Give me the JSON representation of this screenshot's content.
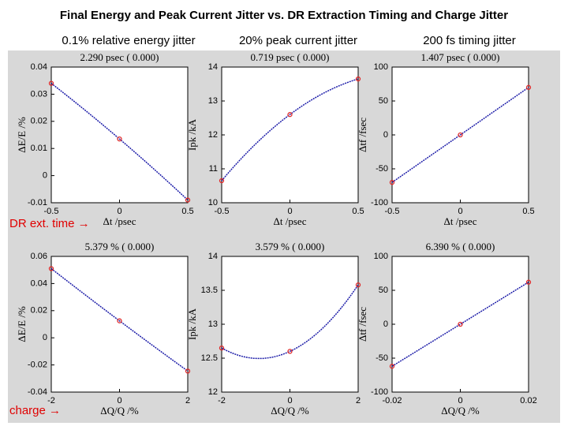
{
  "slide": {
    "title": "Final Energy and Peak Current Jitter vs. DR Extraction Timing and Charge Jitter",
    "column_labels": [
      "0.1% relative energy jitter",
      "20% peak current jitter",
      "200 fs timing jitter"
    ],
    "row_labels": [
      "DR ext. time →",
      "charge →"
    ]
  },
  "chart_data": [
    {
      "type": "line",
      "title": "2.290 psec ( 0.000)",
      "x_label": "Δt /psec",
      "y_label": "ΔE/E /%",
      "x": [
        -0.5,
        0,
        0.5
      ],
      "values": [
        0.034,
        0.0135,
        -0.009
      ],
      "xlim": [
        -0.5,
        0.5
      ],
      "xticks": [
        -0.5,
        0,
        0.5
      ],
      "ylim": [
        -0.01,
        0.04
      ],
      "yticks": [
        -0.01,
        0,
        0.01,
        0.02,
        0.03,
        0.04
      ],
      "line_color": "#1c1ca8",
      "marker_color": "#e02a2a"
    },
    {
      "type": "line",
      "title": "0.719 psec ( 0.000)",
      "x_label": "Δt /psec",
      "y_label": "Ipk /kA",
      "x": [
        -0.5,
        0,
        0.5
      ],
      "values": [
        10.65,
        12.6,
        13.65
      ],
      "xlim": [
        -0.5,
        0.5
      ],
      "xticks": [
        -0.5,
        0,
        0.5
      ],
      "ylim": [
        10,
        14
      ],
      "yticks": [
        10,
        11,
        12,
        13,
        14
      ],
      "line_color": "#1c1ca8",
      "marker_color": "#e02a2a"
    },
    {
      "type": "line",
      "title": "1.407 psec ( 0.000)",
      "x_label": "Δt /psec",
      "y_label": "Δtf /fsec",
      "x": [
        -0.5,
        0,
        0.5
      ],
      "values": [
        -70,
        0,
        70
      ],
      "xlim": [
        -0.5,
        0.5
      ],
      "xticks": [
        -0.5,
        0,
        0.5
      ],
      "ylim": [
        -100,
        100
      ],
      "yticks": [
        -100,
        -50,
        0,
        50,
        100
      ],
      "line_color": "#1c1ca8",
      "marker_color": "#e02a2a"
    },
    {
      "type": "line",
      "title": "5.379 % ( 0.000)",
      "x_label": "ΔQ/Q /%",
      "y_label": "ΔE/E /%",
      "x": [
        -2,
        0,
        2
      ],
      "values": [
        0.051,
        0.0125,
        -0.0245
      ],
      "xlim": [
        -2,
        2
      ],
      "xticks": [
        -2,
        0,
        2
      ],
      "ylim": [
        -0.04,
        0.06
      ],
      "yticks": [
        -0.04,
        -0.02,
        0,
        0.02,
        0.04,
        0.06
      ],
      "line_color": "#1c1ca8",
      "marker_color": "#e02a2a"
    },
    {
      "type": "line",
      "title": "3.579 % ( 0.000)",
      "x_label": "ΔQ/Q /%",
      "y_label": "Ipk /kA",
      "x": [
        -2,
        0,
        2
      ],
      "values": [
        12.65,
        12.6,
        13.58
      ],
      "xlim": [
        -2,
        2
      ],
      "xticks": [
        -2,
        0,
        2
      ],
      "ylim": [
        12,
        14
      ],
      "yticks": [
        12,
        12.5,
        13,
        13.5,
        14
      ],
      "line_color": "#1c1ca8",
      "marker_color": "#e02a2a"
    },
    {
      "type": "line",
      "title": "6.390 % ( 0.000)",
      "x_label": "ΔQ/Q /%",
      "y_label": "Δtf /fsec",
      "x": [
        -0.02,
        0,
        0.02
      ],
      "values": [
        -62,
        0,
        62
      ],
      "xlim": [
        -0.02,
        0.02
      ],
      "xticks": [
        -0.02,
        0,
        0.02
      ],
      "ylim": [
        -100,
        100
      ],
      "yticks": [
        -100,
        -50,
        0,
        50,
        100
      ],
      "line_color": "#1c1ca8",
      "marker_color": "#e02a2a"
    }
  ]
}
